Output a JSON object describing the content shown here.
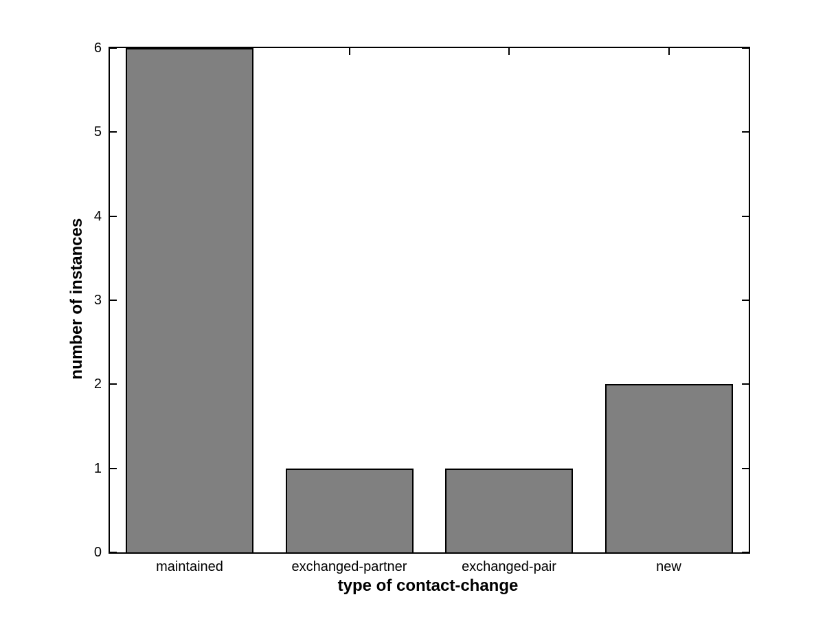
{
  "figure": {
    "background": "#ffffff"
  },
  "chart_data": {
    "type": "bar",
    "categories": [
      "maintained",
      "exchanged-partner",
      "exchanged-pair",
      "new"
    ],
    "values": [
      6,
      1,
      1,
      2
    ],
    "title": "",
    "xlabel": "type of contact-change",
    "ylabel": "number of instances",
    "ylim": [
      0,
      6
    ],
    "yticks": [
      0,
      1,
      2,
      3,
      4,
      5,
      6
    ],
    "bar_width_fraction": 0.8,
    "grid": false,
    "legend": "none",
    "colors": {
      "bar_fill": "#808080",
      "bar_edge": "#000000",
      "axis": "#000000",
      "text": "#000000"
    }
  }
}
